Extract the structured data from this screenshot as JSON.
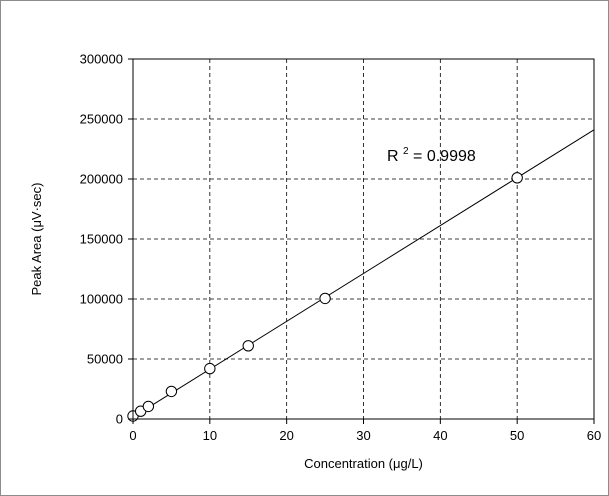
{
  "chart_data": {
    "type": "scatter",
    "title": "",
    "xlabel": "Concentration (μg/L)",
    "ylabel": "Peak Area (μV·sec)",
    "xlim": [
      0,
      60
    ],
    "ylim": [
      0,
      300000
    ],
    "x_ticks": [
      0,
      10,
      20,
      30,
      40,
      50,
      60
    ],
    "y_ticks": [
      0,
      50000,
      100000,
      150000,
      200000,
      250000,
      300000
    ],
    "grid": true,
    "grid_style": "dashed",
    "legend": "none",
    "marker": "open-circle",
    "series": [
      {
        "x": [
          0,
          1,
          2,
          5,
          10,
          15,
          25,
          50
        ],
        "y": [
          2500,
          6500,
          10500,
          23000,
          42000,
          61000,
          100500,
          201000
        ]
      }
    ],
    "trendline": {
      "type": "linear",
      "x_range": [
        0,
        60
      ],
      "y_at_x_min": 1600,
      "y_at_x_max": 241000
    },
    "annotation": {
      "base": "R",
      "superscript": "2",
      "value": " = 0.9998"
    }
  }
}
